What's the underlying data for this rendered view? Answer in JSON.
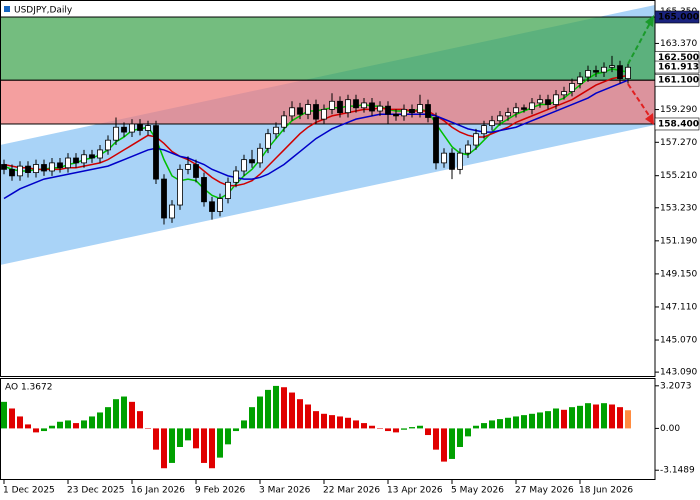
{
  "chart_data": {
    "type": "candlestick",
    "title": "USDJPY,Daily",
    "categories": [
      "1 Dec 2025",
      null,
      null,
      null,
      null,
      null,
      null,
      null,
      "23 Dec 2025",
      null,
      null,
      null,
      null,
      null,
      null,
      null,
      "16 Jan 2026",
      null,
      null,
      null,
      null,
      null,
      null,
      null,
      "9 Feb 2026",
      null,
      null,
      null,
      null,
      null,
      null,
      null,
      "3 Mar 2026",
      null,
      null,
      null,
      null,
      null,
      null,
      null,
      "22 Mar 2026",
      null,
      null,
      null,
      null,
      null,
      null,
      null,
      "13 Apr 2026",
      null,
      null,
      null,
      null,
      null,
      null,
      null,
      "5 May 2026",
      null,
      null,
      null,
      null,
      null,
      null,
      null,
      "27 May 2026",
      null,
      null,
      null,
      null,
      null,
      null,
      null,
      "18 Jun 2026",
      null,
      null,
      null,
      null,
      null,
      null
    ],
    "open": [
      155.9,
      155.6,
      155.2,
      155.8,
      155.4,
      155.9,
      155.5,
      156.0,
      155.7,
      156.3,
      156.0,
      156.5,
      156.3,
      156.8,
      157.4,
      158.2,
      157.9,
      158.4,
      158.0,
      158.3,
      155.0,
      152.6,
      153.4,
      155.6,
      155.9,
      155.1,
      153.6,
      153.0,
      153.8,
      154.8,
      155.5,
      156.2,
      156.0,
      156.9,
      157.8,
      158.2,
      158.9,
      159.4,
      159.0,
      159.6,
      158.7,
      159.3,
      159.8,
      159.1,
      159.9,
      159.4,
      159.7,
      159.2,
      159.5,
      159.0,
      158.9,
      159.3,
      159.1,
      159.6,
      158.8,
      156.0,
      156.6,
      155.6,
      156.6,
      157.1,
      157.8,
      158.3,
      158.6,
      158.9,
      159.1,
      159.4,
      159.3,
      159.7,
      159.9,
      159.6,
      160.2,
      160.4,
      160.9,
      161.3,
      161.7,
      161.6,
      161.9,
      162.0,
      161.2
    ],
    "high": [
      156.2,
      155.9,
      156.1,
      156.1,
      156.2,
      156.2,
      156.3,
      156.3,
      156.6,
      156.6,
      156.8,
      156.8,
      157.1,
      157.7,
      158.8,
      158.5,
      158.7,
      158.7,
      158.6,
      158.6,
      155.3,
      153.7,
      155.9,
      156.4,
      156.2,
      155.4,
      153.9,
      154.1,
      155.1,
      155.8,
      156.5,
      156.8,
      157.2,
      158.1,
      158.5,
      159.2,
      159.8,
      159.7,
      159.9,
      159.9,
      159.6,
      160.3,
      160.1,
      160.2,
      160.2,
      160.0,
      160.0,
      159.8,
      159.8,
      159.3,
      159.6,
      159.6,
      160.2,
      159.9,
      159.1,
      156.9,
      156.9,
      156.9,
      157.4,
      158.1,
      158.6,
      158.9,
      159.2,
      159.4,
      159.7,
      159.6,
      160.0,
      160.2,
      160.2,
      160.5,
      160.7,
      161.2,
      161.6,
      162.0,
      162.0,
      162.2,
      162.6,
      162.3,
      162.1
    ],
    "low": [
      155.3,
      154.9,
      154.9,
      155.1,
      155.1,
      155.2,
      155.2,
      155.4,
      155.4,
      155.7,
      155.7,
      156.0,
      156.0,
      156.5,
      157.1,
      157.6,
      157.6,
      157.7,
      157.7,
      154.7,
      152.2,
      152.3,
      153.1,
      155.3,
      154.8,
      153.3,
      152.5,
      152.7,
      153.5,
      154.5,
      155.2,
      155.7,
      155.7,
      156.6,
      157.5,
      157.9,
      158.6,
      158.7,
      158.7,
      158.4,
      158.4,
      159.0,
      158.8,
      158.8,
      159.1,
      159.1,
      158.9,
      158.9,
      158.4,
      158.6,
      158.6,
      158.8,
      158.8,
      158.5,
      155.6,
      155.7,
      155.0,
      155.3,
      156.3,
      156.8,
      157.5,
      158.0,
      158.3,
      158.6,
      158.8,
      159.1,
      159.0,
      159.4,
      159.3,
      159.3,
      159.9,
      160.1,
      160.6,
      161.0,
      161.3,
      161.3,
      161.6,
      160.9,
      160.9
    ],
    "close": [
      155.6,
      155.2,
      155.8,
      155.4,
      155.9,
      155.5,
      156.0,
      155.7,
      156.3,
      156.0,
      156.5,
      156.3,
      156.8,
      157.4,
      158.2,
      157.9,
      158.4,
      158.0,
      158.3,
      155.0,
      152.6,
      153.4,
      155.6,
      155.9,
      155.1,
      153.6,
      153.0,
      153.8,
      154.8,
      155.5,
      156.2,
      156.0,
      156.9,
      157.8,
      158.2,
      158.9,
      159.4,
      159.0,
      159.6,
      158.7,
      159.3,
      159.8,
      159.1,
      159.9,
      159.4,
      159.7,
      159.2,
      159.5,
      159.0,
      158.9,
      159.3,
      159.1,
      159.6,
      158.8,
      156.0,
      156.6,
      155.6,
      156.6,
      157.1,
      157.8,
      158.3,
      158.6,
      158.9,
      159.1,
      159.4,
      159.3,
      159.7,
      159.9,
      159.6,
      160.2,
      160.4,
      160.9,
      161.3,
      161.7,
      161.6,
      161.9,
      162.0,
      161.2,
      161.9
    ],
    "up_color": "#ffffff",
    "down_color": "#000000",
    "lines": [
      {
        "color": "#00c000",
        "values": [
          155.8,
          155.6,
          155.5,
          155.5,
          155.6,
          155.6,
          155.7,
          155.7,
          155.9,
          156.0,
          156.2,
          156.3,
          156.5,
          156.8,
          157.3,
          157.6,
          158.0,
          158.1,
          158.2,
          157.5,
          156.2,
          155.2,
          154.9,
          155.0,
          154.9,
          154.4,
          154.0,
          153.8,
          154.1,
          154.7,
          155.2,
          155.6,
          156.2,
          156.9,
          157.5,
          158.1,
          158.6,
          158.9,
          159.2,
          159.2,
          159.3,
          159.4,
          159.4,
          159.5,
          159.5,
          159.6,
          159.5,
          159.5,
          159.3,
          159.2,
          159.2,
          159.2,
          159.3,
          159.2,
          158.4,
          157.7,
          157.0,
          156.6,
          156.5,
          156.9,
          157.4,
          157.9,
          158.4,
          158.7,
          159.0,
          159.2,
          159.4,
          159.6,
          159.6,
          159.8,
          160.0,
          160.4,
          160.8,
          161.2,
          161.5,
          161.6,
          161.8,
          161.7,
          161.6
        ]
      },
      {
        "color": "#d00000",
        "values": [
          155.9,
          155.8,
          155.7,
          155.7,
          155.6,
          155.6,
          155.6,
          155.6,
          155.7,
          155.7,
          155.8,
          155.9,
          156.0,
          156.2,
          156.5,
          156.8,
          157.1,
          157.4,
          157.7,
          157.6,
          157.2,
          156.7,
          156.4,
          156.2,
          155.9,
          155.5,
          155.1,
          154.8,
          154.6,
          154.6,
          154.7,
          154.9,
          155.3,
          155.8,
          156.3,
          156.8,
          157.3,
          157.8,
          158.2,
          158.5,
          158.7,
          158.9,
          159.0,
          159.1,
          159.2,
          159.3,
          159.3,
          159.4,
          159.3,
          159.3,
          159.3,
          159.2,
          159.2,
          159.2,
          158.9,
          158.6,
          158.2,
          157.9,
          157.7,
          157.6,
          157.6,
          157.8,
          158.0,
          158.2,
          158.5,
          158.7,
          158.9,
          159.1,
          159.3,
          159.5,
          159.7,
          159.9,
          160.2,
          160.5,
          160.8,
          161.0,
          161.2,
          161.3,
          161.4
        ]
      },
      {
        "color": "#0000c8",
        "values": [
          153.8,
          154.1,
          154.4,
          154.6,
          154.8,
          155.0,
          155.1,
          155.2,
          155.3,
          155.4,
          155.5,
          155.6,
          155.7,
          155.8,
          156.0,
          156.2,
          156.4,
          156.6,
          156.8,
          156.9,
          156.8,
          156.6,
          156.4,
          156.3,
          156.1,
          155.9,
          155.6,
          155.4,
          155.2,
          155.1,
          155.0,
          155.0,
          155.1,
          155.3,
          155.6,
          155.9,
          156.3,
          156.7,
          157.1,
          157.5,
          157.8,
          158.1,
          158.3,
          158.5,
          158.7,
          158.8,
          158.9,
          159.0,
          159.0,
          159.0,
          159.0,
          159.0,
          159.0,
          159.0,
          158.9,
          158.7,
          158.5,
          158.3,
          158.1,
          158.0,
          157.9,
          157.9,
          158.0,
          158.1,
          158.2,
          158.4,
          158.6,
          158.8,
          159.0,
          159.2,
          159.4,
          159.6,
          159.8,
          160.0,
          160.3,
          160.5,
          160.7,
          160.9,
          161.1
        ]
      }
    ],
    "ylim": [
      142.85,
      166.05
    ],
    "yticks": [
      {
        "value": 165.35,
        "label": "165.350"
      },
      {
        "value": 163.37,
        "label": "163.370"
      },
      {
        "value": 159.29,
        "label": "159.290"
      },
      {
        "value": 157.27,
        "label": "157.270"
      },
      {
        "value": 155.21,
        "label": "155.210"
      },
      {
        "value": 153.23,
        "label": "153.230"
      },
      {
        "value": 151.19,
        "label": "151.190"
      },
      {
        "value": 149.15,
        "label": "149.150"
      },
      {
        "value": 147.11,
        "label": "147.110"
      },
      {
        "value": 145.07,
        "label": "145.070"
      },
      {
        "value": 143.09,
        "label": "143.090"
      }
    ],
    "zones": [
      {
        "low": 161.1,
        "high": 165.0,
        "color": "#3fa34d"
      },
      {
        "low": 158.4,
        "high": 161.1,
        "color": "#f07a7a"
      }
    ],
    "levels": [
      {
        "value": 165.0,
        "label": "165.000",
        "color": "#1a237e",
        "text_color": "#ffffff"
      },
      {
        "value": 162.5,
        "label": "162.500",
        "color": "#ffffff",
        "text_color": "#000000"
      },
      {
        "value": 161.913,
        "label": "161.913",
        "color": "#ffffff",
        "text_color": "#000000"
      },
      {
        "value": 161.1,
        "label": "161.100",
        "color": "#ffffff",
        "text_color": "#000000"
      },
      {
        "value": 158.4,
        "label": "158.400",
        "color": "#ffffff",
        "text_color": "#000000"
      }
    ],
    "ao": {
      "title": "AO 1.3672",
      "values": [
        2.0,
        1.5,
        0.9,
        0.3,
        -0.3,
        -0.2,
        0.2,
        0.5,
        0.6,
        0.4,
        0.6,
        0.9,
        1.2,
        1.6,
        2.2,
        2.4,
        2.0,
        1.3,
        0.0,
        -1.6,
        -3.0,
        -2.6,
        -1.4,
        -0.9,
        -1.5,
        -2.6,
        -3.0,
        -2.2,
        -1.2,
        -0.2,
        0.6,
        1.6,
        2.4,
        2.9,
        3.2,
        3.1,
        2.7,
        2.2,
        1.8,
        1.3,
        1.1,
        1.0,
        0.9,
        0.8,
        0.6,
        0.4,
        0.2,
        0.0,
        -0.2,
        -0.3,
        -0.1,
        0.1,
        0.2,
        -0.5,
        -1.6,
        -2.5,
        -2.3,
        -1.4,
        -0.6,
        0.2,
        0.4,
        0.6,
        0.7,
        0.8,
        0.9,
        1.0,
        1.1,
        1.2,
        1.3,
        1.5,
        1.4,
        1.6,
        1.7,
        1.9,
        1.8,
        1.9,
        1.8,
        1.6,
        1.3672
      ],
      "up_color": "#00a000",
      "down_color": "#e00000",
      "last_color": "#ff8c40",
      "ylim": [
        -3.81,
        3.72
      ],
      "yticks": [
        3.2073,
        {
          "value": 0,
          "label": "0.00"
        },
        -3.1489
      ]
    }
  }
}
